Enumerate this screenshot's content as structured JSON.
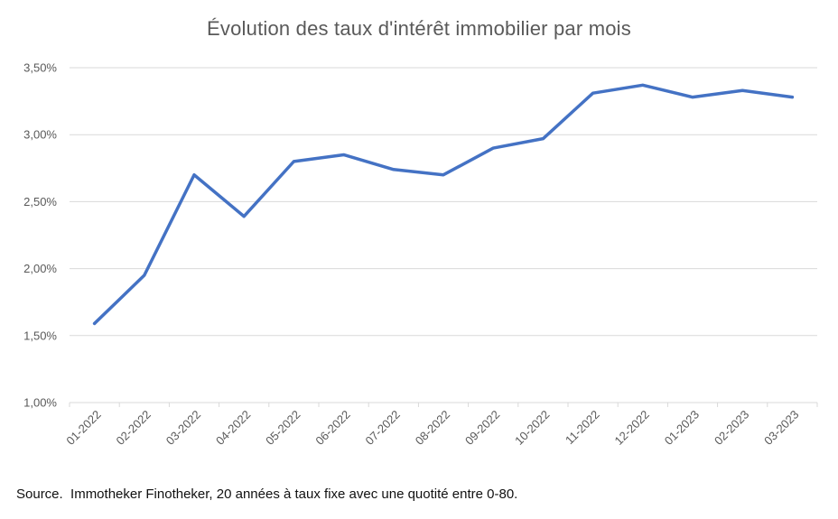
{
  "page": {
    "background": "#ffffff"
  },
  "colors": {
    "line": "#4472C4",
    "gridline": "#D9D9D9",
    "axis_text": "#595959",
    "title_text": "#595959",
    "source_text": "#111111"
  },
  "chart_data": {
    "type": "line",
    "title": "Évolution des taux d'intérêt immobilier par mois",
    "xlabel": "",
    "ylabel": "",
    "legend": "none",
    "grid": "horizontal",
    "ylim": [
      1.0,
      3.5
    ],
    "categories": [
      "01-2022",
      "02-2022",
      "03-2022",
      "04-2022",
      "05-2022",
      "06-2022",
      "07-2022",
      "08-2022",
      "09-2022",
      "10-2022",
      "11-2022",
      "12-2022",
      "01-2023",
      "02-2023",
      "03-2023"
    ],
    "values": [
      1.59,
      1.95,
      2.7,
      2.39,
      2.8,
      2.85,
      2.74,
      2.7,
      2.9,
      2.97,
      3.31,
      3.37,
      3.28,
      3.33,
      3.28
    ],
    "y_ticks": [
      1.0,
      1.5,
      2.0,
      2.5,
      3.0,
      3.5
    ],
    "y_tick_labels": [
      "1,00%",
      "1,50%",
      "2,00%",
      "2,50%",
      "3,00%",
      "3,50%"
    ]
  },
  "footer": {
    "source_note": "Source.  Immotheker Finotheker, 20 années à taux fixe avec une quotité entre 0-80."
  }
}
